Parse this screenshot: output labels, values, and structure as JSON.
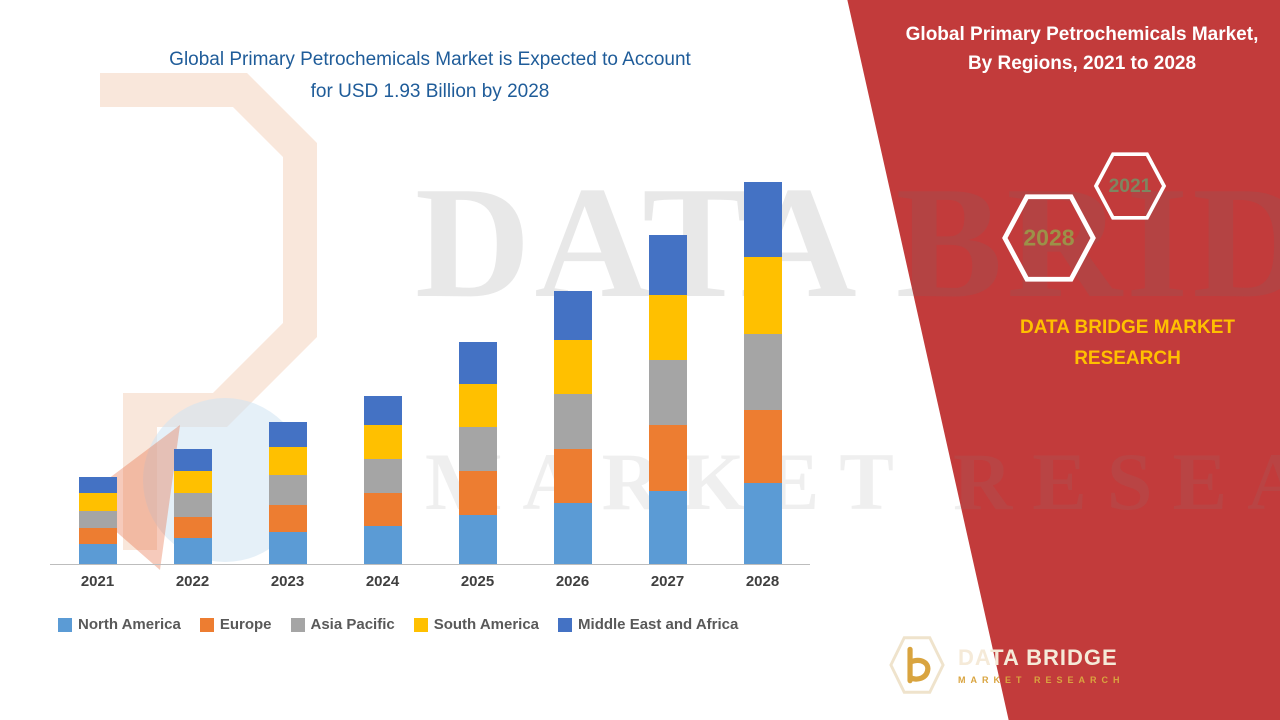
{
  "left": {
    "title_line1": "Global Primary Petrochemicals Market is Expected to Account",
    "title_line2": "for USD 1.93 Billion by 2028",
    "title_color": "#1F5C99"
  },
  "chart_data": {
    "type": "bar",
    "stacked": true,
    "title": "Global Primary Petrochemicals Market, By Regions, 2021 to 2028",
    "categories": [
      "2021",
      "2022",
      "2023",
      "2024",
      "2025",
      "2026",
      "2027",
      "2028"
    ],
    "series": [
      {
        "name": "North America",
        "color": "#5B9BD5",
        "values": [
          0.1,
          0.13,
          0.16,
          0.19,
          0.25,
          0.31,
          0.37,
          0.41
        ]
      },
      {
        "name": "Europe",
        "color": "#ED7D31",
        "values": [
          0.08,
          0.11,
          0.14,
          0.17,
          0.22,
          0.27,
          0.33,
          0.37
        ]
      },
      {
        "name": "Asia Pacific",
        "color": "#A5A5A5",
        "values": [
          0.09,
          0.12,
          0.15,
          0.17,
          0.22,
          0.28,
          0.33,
          0.38
        ]
      },
      {
        "name": "South America",
        "color": "#FFC000",
        "values": [
          0.09,
          0.11,
          0.14,
          0.17,
          0.22,
          0.27,
          0.33,
          0.39
        ]
      },
      {
        "name": "Middle East and Africa",
        "color": "#4472C4",
        "values": [
          0.08,
          0.11,
          0.13,
          0.15,
          0.21,
          0.25,
          0.3,
          0.38
        ]
      }
    ],
    "totals": [
      0.44,
      0.58,
      0.72,
      0.85,
      1.12,
      1.38,
      1.66,
      1.93
    ],
    "units": "USD Billion",
    "ylabel": "",
    "xlabel": "",
    "ylim": [
      0,
      2.0
    ],
    "grid": false,
    "y_axis_visible": false,
    "legend_position": "bottom"
  },
  "right_panel": {
    "title": "Global Primary Petrochemicals Market, By Regions, 2021 to 2028",
    "hexagons": [
      {
        "label": "2021",
        "color": "#7E8660"
      },
      {
        "label": "2028",
        "color": "#9C9148"
      }
    ],
    "brand_line1": "DATA BRIDGE MARKET",
    "brand_line2": "RESEARCH",
    "logo_name": "DATA BRIDGE",
    "logo_subtitle": "MARKET RESEARCH",
    "accent_red": "#C23B3B",
    "accent_yellow": "#FFC000"
  },
  "watermark": {
    "line1": "DATA BRIDGE",
    "line2": "MARKET RESEARCH"
  },
  "icons": {
    "hexagon_outline": "hexagon-outline-icon",
    "logo_mark": "data-bridge-b-logo-icon"
  }
}
